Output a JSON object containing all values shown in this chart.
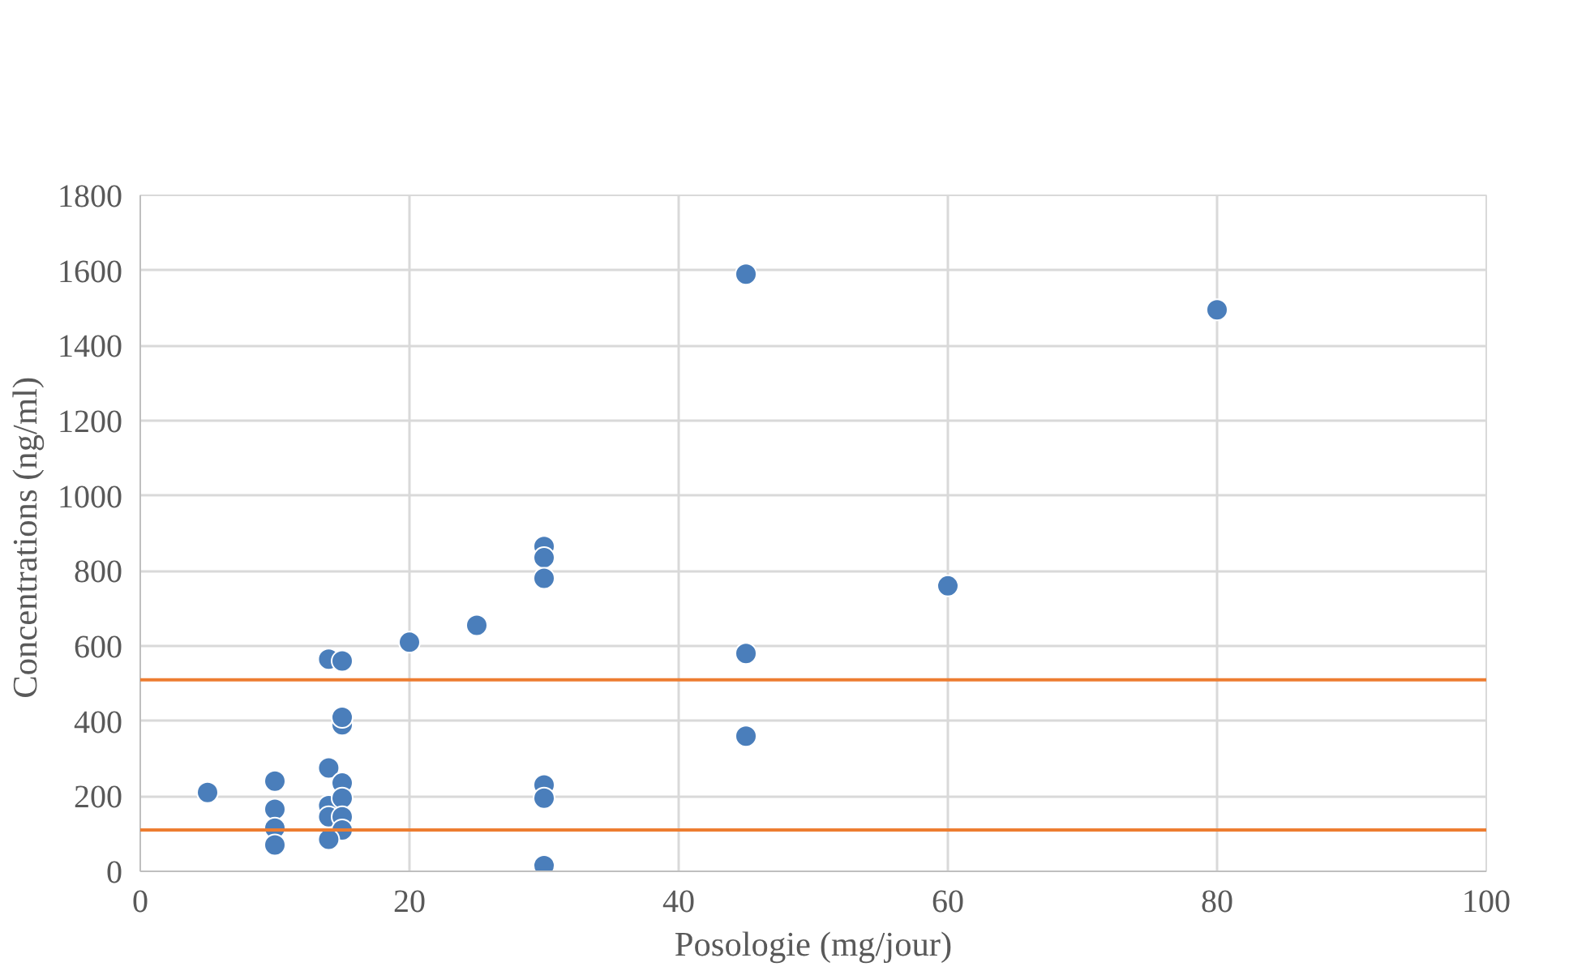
{
  "chart_data": {
    "type": "scatter",
    "xlabel": "Posologie (mg/jour)",
    "ylabel": "Concentrations  (ng/ml)",
    "series": [
      {
        "color": "#4a7ebb",
        "x": [
          5,
          10,
          10,
          10,
          10,
          14,
          15,
          15,
          15,
          14,
          15,
          14,
          15,
          14,
          15,
          15,
          14,
          20,
          25,
          30,
          30,
          30,
          30,
          30,
          30,
          45,
          45,
          45,
          60,
          80
        ],
        "values": [
          210,
          240,
          165,
          115,
          70,
          565,
          560,
          390,
          410,
          275,
          235,
          175,
          195,
          145,
          145,
          110,
          85,
          610,
          655,
          865,
          835,
          780,
          230,
          195,
          15,
          1590,
          580,
          360,
          760,
          1495
        ]
      }
    ],
    "xlim": [
      0,
      100
    ],
    "xticks": [
      0,
      20,
      40,
      60,
      80,
      100
    ],
    "ylim": [
      0,
      1800
    ],
    "yticks": [
      0,
      200,
      400,
      600,
      800,
      1000,
      1200,
      1400,
      1600,
      1800
    ],
    "grid": true,
    "marker": "circle",
    "ref_lines": [
      {
        "axis": "y",
        "value": 510,
        "color": "#ed7d31"
      },
      {
        "axis": "y",
        "value": 110,
        "color": "#ed7d31"
      }
    ]
  }
}
